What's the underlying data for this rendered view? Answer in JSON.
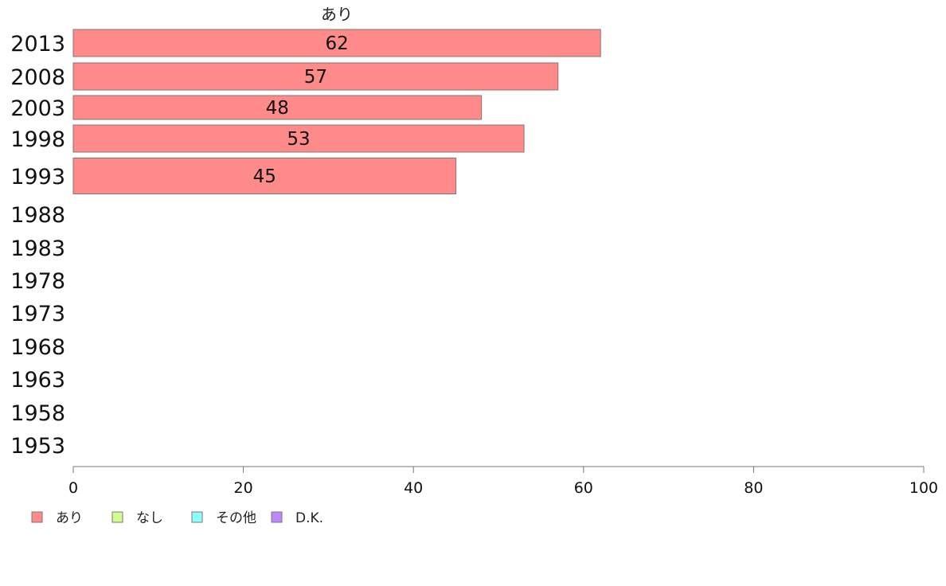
{
  "chart_data": {
    "type": "bar",
    "orientation": "horizontal",
    "series_title": "あり",
    "categories": [
      "2013",
      "2008",
      "2003",
      "1998",
      "1993",
      "1988",
      "1983",
      "1978",
      "1973",
      "1968",
      "1963",
      "1958",
      "1953"
    ],
    "series": [
      {
        "name": "あり",
        "values": [
          62,
          57,
          48,
          53,
          45,
          null,
          null,
          null,
          null,
          null,
          null,
          null,
          null
        ],
        "color": "#ff8a8a"
      }
    ],
    "xlim": [
      0,
      100
    ],
    "x_ticks": [
      "0",
      "20",
      "40",
      "60",
      "80",
      "100"
    ],
    "legend": {
      "placement": "bottom-left",
      "items": [
        {
          "label": "あり",
          "color": "#ff8a8a"
        },
        {
          "label": "なし",
          "color": "#ccff8f"
        },
        {
          "label": "その他",
          "color": "#8affff"
        },
        {
          "label": "D.K.",
          "color": "#bb88ff"
        }
      ]
    },
    "grid": false
  }
}
